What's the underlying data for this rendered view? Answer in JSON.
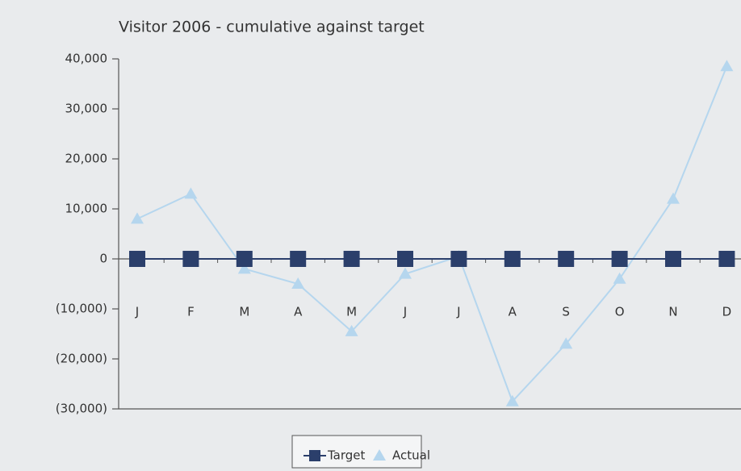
{
  "chart_data": {
    "type": "line",
    "title": "Visitor 2006 - cumulative against target",
    "categories": [
      "J",
      "F",
      "M",
      "A",
      "M",
      "J",
      "J",
      "A",
      "S",
      "O",
      "N",
      "D"
    ],
    "series": [
      {
        "name": "Target",
        "color": "#2b3f6b",
        "marker": "square",
        "values": [
          0,
          0,
          0,
          0,
          0,
          0,
          0,
          0,
          0,
          0,
          0,
          0
        ]
      },
      {
        "name": "Actual",
        "color": "#b5d6ee",
        "marker": "triangle",
        "values": [
          8000,
          13000,
          -2000,
          -5000,
          -14500,
          -3000,
          500,
          -28500,
          -17000,
          -4000,
          12000,
          38500
        ]
      }
    ],
    "ylim": [
      -30000,
      40000
    ],
    "yticks": [
      {
        "value": -30000,
        "label": "(30,000)"
      },
      {
        "value": -20000,
        "label": "(20,000)"
      },
      {
        "value": -10000,
        "label": "(10,000)"
      },
      0,
      {
        "value": 10000,
        "label": "10,000"
      },
      {
        "value": 20000,
        "label": "20,000"
      },
      {
        "value": 30000,
        "label": "30,000"
      },
      {
        "value": 40000,
        "label": "40,000"
      }
    ],
    "legend": "bottom"
  }
}
